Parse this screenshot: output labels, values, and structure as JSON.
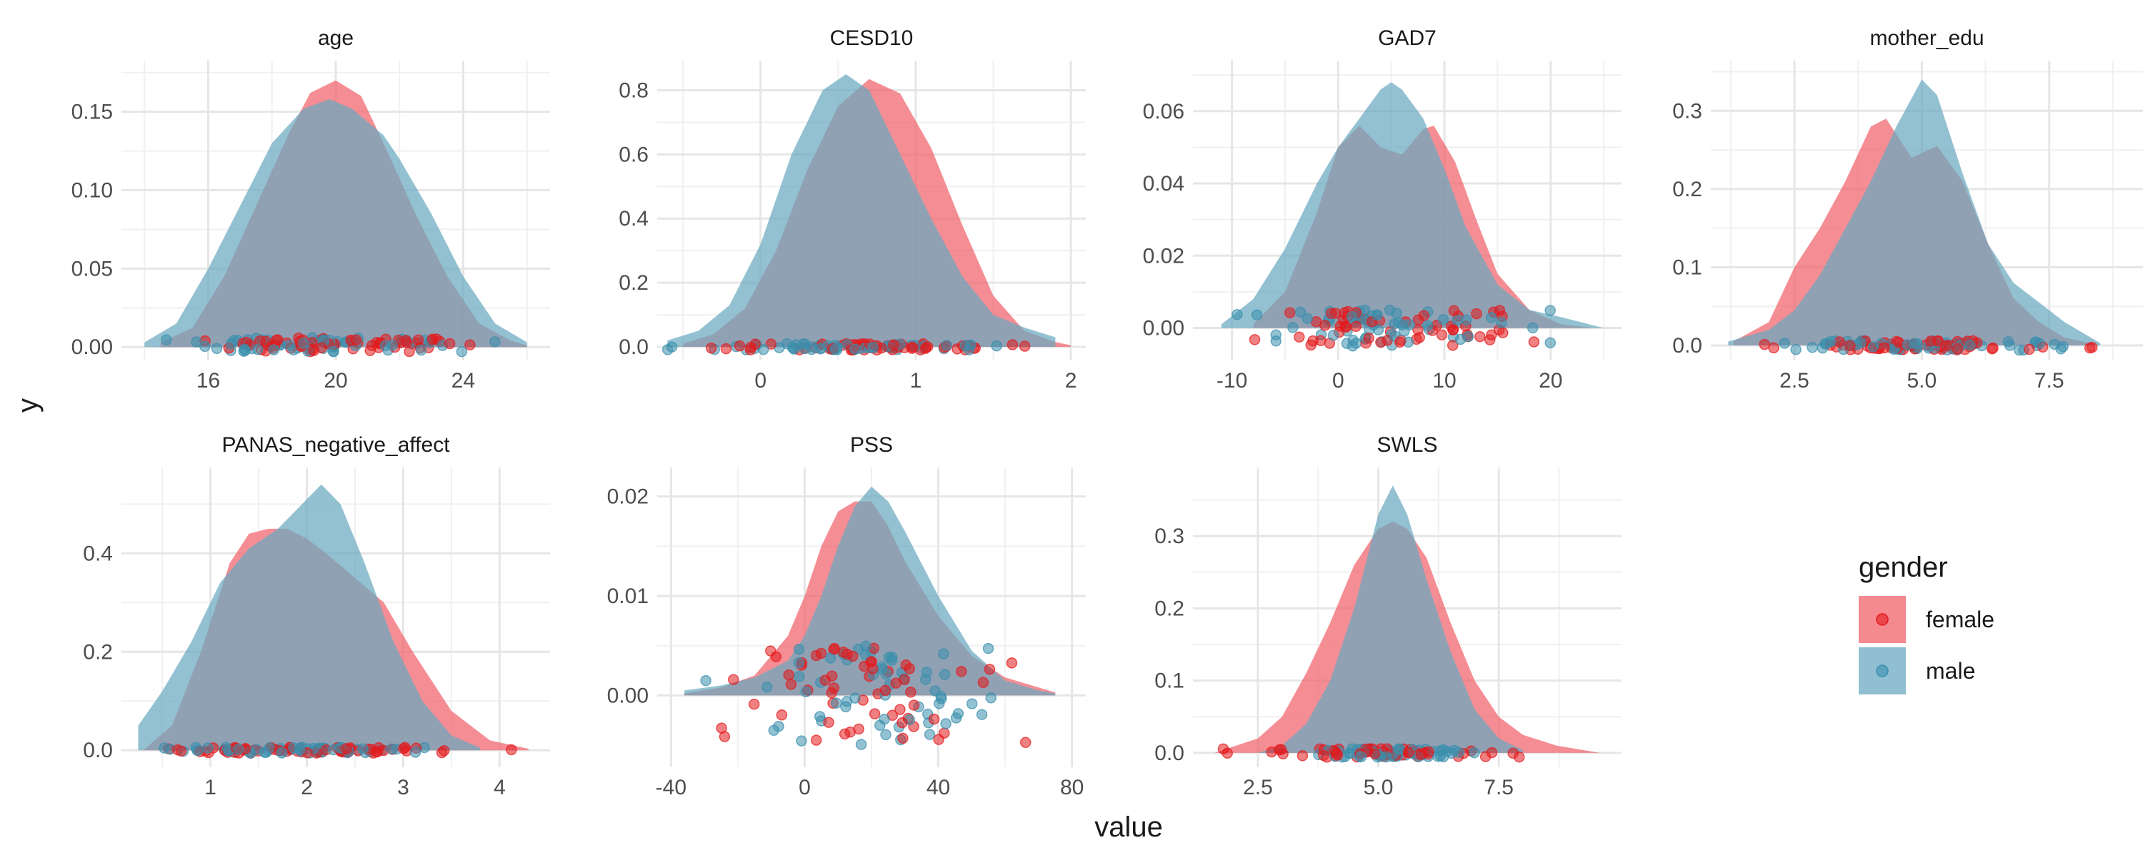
{
  "chart_data": {
    "type": "area",
    "xlabel": "value",
    "ylabel": "y",
    "legend": {
      "title": "gender",
      "position": "right",
      "entries": [
        {
          "name": "female",
          "color": "#F8766D",
          "point_color": "#E41A1C"
        },
        {
          "name": "male",
          "color": "#69A9C1",
          "point_color": "#377EB8"
        }
      ]
    },
    "grid": true,
    "colors": {
      "female_fill": "#F0626B",
      "male_fill": "#69A9C1",
      "female_point": "#E41A1C",
      "male_point": "#3A8FAD"
    },
    "facets": [
      {
        "title": "age",
        "xlim": [
          13.5,
          26.5
        ],
        "ylim": [
          -0.004,
          0.178
        ],
        "xticks": [
          16,
          20,
          24
        ],
        "xtick_labels": [
          "16",
          "20",
          "24"
        ],
        "yticks": [
          0,
          0.05,
          0.1,
          0.15
        ],
        "ytick_labels": [
          "0.00",
          "0.05",
          "0.10",
          "0.15"
        ],
        "series": [
          {
            "name": "female",
            "x": [
              14.5,
              15.5,
              16.5,
              17.5,
              18.5,
              19.2,
              20.0,
              20.8,
              21.5,
              22.5,
              23.5,
              24.5,
              25.5,
              26.0
            ],
            "y": [
              0.003,
              0.012,
              0.045,
              0.09,
              0.135,
              0.162,
              0.17,
              0.16,
              0.13,
              0.085,
              0.045,
              0.015,
              0.004,
              0.001
            ]
          },
          {
            "name": "male",
            "x": [
              14.0,
              15.0,
              16.0,
              17.0,
              18.0,
              19.0,
              19.8,
              20.5,
              21.5,
              22.0,
              23.0,
              24.0,
              25.0,
              26.0
            ],
            "y": [
              0.003,
              0.015,
              0.05,
              0.09,
              0.13,
              0.152,
              0.158,
              0.152,
              0.135,
              0.12,
              0.085,
              0.045,
              0.015,
              0.003
            ]
          }
        ],
        "points_yrange": [
          -0.003,
          0.006
        ]
      },
      {
        "title": "CESD10",
        "xlim": [
          -0.62,
          2.05
        ],
        "ylim": [
          -0.02,
          0.87
        ],
        "xticks": [
          0,
          1,
          2
        ],
        "xtick_labels": [
          "0",
          "1",
          "2"
        ],
        "yticks": [
          0,
          0.2,
          0.4,
          0.6,
          0.8
        ],
        "ytick_labels": [
          "0.0",
          "0.2",
          "0.4",
          "0.6",
          "0.8"
        ],
        "series": [
          {
            "name": "female",
            "x": [
              -0.5,
              -0.3,
              -0.1,
              0.1,
              0.3,
              0.5,
              0.7,
              0.9,
              1.1,
              1.3,
              1.5,
              1.7,
              1.9,
              2.0
            ],
            "y": [
              0.01,
              0.04,
              0.12,
              0.3,
              0.55,
              0.75,
              0.835,
              0.79,
              0.62,
              0.38,
              0.16,
              0.05,
              0.015,
              0.005
            ]
          },
          {
            "name": "male",
            "x": [
              -0.6,
              -0.4,
              -0.2,
              0.0,
              0.2,
              0.4,
              0.55,
              0.7,
              0.9,
              1.1,
              1.3,
              1.5,
              1.7,
              1.9
            ],
            "y": [
              0.02,
              0.05,
              0.13,
              0.32,
              0.6,
              0.8,
              0.85,
              0.8,
              0.6,
              0.4,
              0.22,
              0.1,
              0.06,
              0.03
            ]
          }
        ],
        "points_yrange": [
          -0.01,
          0.01
        ]
      },
      {
        "title": "GAD7",
        "xlim": [
          -13,
          26
        ],
        "ylim": [
          -0.007,
          0.072
        ],
        "xticks": [
          -10,
          0,
          10,
          20
        ],
        "xtick_labels": [
          "-10",
          "0",
          "10",
          "20"
        ],
        "yticks": [
          0,
          0.02,
          0.04,
          0.06
        ],
        "ytick_labels": [
          "0.00",
          "0.02",
          "0.04",
          "0.06"
        ],
        "series": [
          {
            "name": "female",
            "x": [
              -8,
              -5,
              -2,
              0,
              2,
              4,
              6,
              8,
              9,
              11,
              13,
              15,
              18,
              21,
              24
            ],
            "y": [
              0.001,
              0.01,
              0.032,
              0.05,
              0.056,
              0.05,
              0.048,
              0.055,
              0.056,
              0.046,
              0.03,
              0.015,
              0.005,
              0.001,
              0.0
            ]
          },
          {
            "name": "male",
            "x": [
              -11,
              -8,
              -5,
              -2,
              0,
              2,
              4,
              5,
              6,
              8,
              10,
              12,
              15,
              18,
              21,
              25
            ],
            "y": [
              0.001,
              0.008,
              0.022,
              0.04,
              0.05,
              0.058,
              0.066,
              0.068,
              0.066,
              0.058,
              0.044,
              0.028,
              0.012,
              0.005,
              0.003,
              0.0
            ]
          }
        ],
        "points_yrange": [
          -0.005,
          0.005
        ]
      },
      {
        "title": "mother_edu",
        "xlim": [
          1.0,
          9.2
        ],
        "ylim": [
          -0.01,
          0.355
        ],
        "xticks": [
          2.5,
          5.0,
          7.5
        ],
        "xtick_labels": [
          "2.5",
          "5.0",
          "7.5"
        ],
        "yticks": [
          0,
          0.1,
          0.2,
          0.3
        ],
        "ytick_labels": [
          "0.0",
          "0.1",
          "0.2",
          "0.3"
        ],
        "series": [
          {
            "name": "female",
            "x": [
              1.3,
              2.0,
              2.5,
              3.0,
              3.5,
              4.0,
              4.3,
              4.8,
              5.3,
              5.8,
              6.3,
              6.8,
              7.3,
              7.8,
              8.5
            ],
            "y": [
              0.005,
              0.03,
              0.1,
              0.15,
              0.21,
              0.28,
              0.29,
              0.24,
              0.255,
              0.21,
              0.13,
              0.06,
              0.03,
              0.01,
              0.0
            ]
          },
          {
            "name": "male",
            "x": [
              1.2,
              2.0,
              2.5,
              3.0,
              3.5,
              4.0,
              4.5,
              5.0,
              5.3,
              5.8,
              6.3,
              6.8,
              7.3,
              7.8,
              8.5
            ],
            "y": [
              0.005,
              0.02,
              0.045,
              0.09,
              0.15,
              0.21,
              0.28,
              0.34,
              0.32,
              0.22,
              0.13,
              0.08,
              0.055,
              0.03,
              0.003
            ]
          }
        ],
        "points_yrange": [
          -0.006,
          0.006
        ]
      },
      {
        "title": "PANAS_negative_affect",
        "xlim": [
          0.15,
          4.45
        ],
        "ylim": [
          -0.02,
          0.56
        ],
        "xticks": [
          1,
          2,
          3,
          4
        ],
        "xtick_labels": [
          "1",
          "2",
          "3",
          "4"
        ],
        "yticks": [
          0,
          0.2,
          0.4
        ],
        "ytick_labels": [
          "0.0",
          "0.2",
          "0.4"
        ],
        "series": [
          {
            "name": "female",
            "x": [
              0.3,
              0.6,
              0.9,
              1.2,
              1.4,
              1.6,
              1.8,
              2.0,
              2.2,
              2.5,
              2.8,
              3.1,
              3.5,
              3.9,
              4.3
            ],
            "y": [
              0.0,
              0.05,
              0.2,
              0.38,
              0.44,
              0.45,
              0.45,
              0.43,
              0.4,
              0.35,
              0.3,
              0.2,
              0.08,
              0.02,
              0.003
            ]
          },
          {
            "name": "male",
            "x": [
              0.25,
              0.5,
              0.8,
              1.1,
              1.4,
              1.7,
              1.95,
              2.15,
              2.35,
              2.6,
              2.9,
              3.2,
              3.5,
              3.8
            ],
            "y": [
              0.05,
              0.12,
              0.22,
              0.34,
              0.41,
              0.45,
              0.5,
              0.54,
              0.5,
              0.38,
              0.22,
              0.1,
              0.03,
              0.005
            ]
          }
        ],
        "points_yrange": [
          -0.006,
          0.006
        ]
      },
      {
        "title": "PSS",
        "xlim": [
          -42,
          82
        ],
        "ylim": [
          -0.0065,
          0.0222
        ],
        "xticks": [
          -40,
          0,
          40,
          80
        ],
        "xtick_labels": [
          "-40",
          "0",
          "40",
          "80"
        ],
        "yticks": [
          0,
          0.01,
          0.02
        ],
        "ytick_labels": [
          "0.00",
          "0.01",
          "0.02"
        ],
        "series": [
          {
            "name": "female",
            "x": [
              -36,
              -25,
              -15,
              -5,
              0,
              5,
              10,
              15,
              20,
              25,
              30,
              40,
              50,
              60,
              70,
              75
            ],
            "y": [
              0.0002,
              0.0008,
              0.002,
              0.006,
              0.01,
              0.015,
              0.0185,
              0.0195,
              0.0195,
              0.017,
              0.0135,
              0.008,
              0.004,
              0.0018,
              0.0008,
              0.0003
            ]
          },
          {
            "name": "male",
            "x": [
              -36,
              -25,
              -15,
              -5,
              0,
              5,
              10,
              15,
              20,
              25,
              30,
              40,
              50,
              60,
              70,
              75
            ],
            "y": [
              0.0005,
              0.001,
              0.0018,
              0.0035,
              0.006,
              0.01,
              0.015,
              0.019,
              0.021,
              0.0195,
              0.0165,
              0.01,
              0.0045,
              0.0015,
              0.0005,
              0.0002
            ]
          }
        ],
        "points_yrange": [
          -0.005,
          0.005
        ]
      },
      {
        "title": "SWLS",
        "xlim": [
          1.3,
          9.9
        ],
        "ylim": [
          -0.01,
          0.385
        ],
        "xticks": [
          2.5,
          5.0,
          7.5
        ],
        "xtick_labels": [
          "2.5",
          "5.0",
          "7.5"
        ],
        "yticks": [
          0,
          0.1,
          0.2,
          0.3
        ],
        "ytick_labels": [
          "0.0",
          "0.1",
          "0.2",
          "0.3"
        ],
        "series": [
          {
            "name": "female",
            "x": [
              1.6,
              2.5,
              3.0,
              3.5,
              4.0,
              4.5,
              5.0,
              5.3,
              5.6,
              6.0,
              6.5,
              7.0,
              7.5,
              8.0,
              8.7,
              9.6
            ],
            "y": [
              0.0,
              0.02,
              0.05,
              0.11,
              0.18,
              0.26,
              0.31,
              0.32,
              0.31,
              0.27,
              0.18,
              0.1,
              0.05,
              0.025,
              0.01,
              0.0
            ]
          },
          {
            "name": "male",
            "x": [
              2.5,
              3.0,
              3.5,
              4.0,
              4.5,
              5.0,
              5.3,
              5.6,
              6.0,
              6.5,
              7.0,
              7.5,
              8.0
            ],
            "y": [
              0.0,
              0.01,
              0.04,
              0.1,
              0.2,
              0.33,
              0.37,
              0.33,
              0.24,
              0.14,
              0.06,
              0.02,
              0.004
            ]
          }
        ],
        "points_yrange": [
          -0.006,
          0.006
        ]
      }
    ]
  }
}
